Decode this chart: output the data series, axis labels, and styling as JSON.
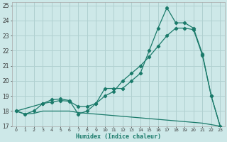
{
  "xlabel": "Humidex (Indice chaleur)",
  "bg_color": "#cde8e8",
  "grid_color": "#b0d0d0",
  "line_color": "#1a7a6a",
  "xlim": [
    -0.5,
    23.5
  ],
  "ylim": [
    17,
    25.2
  ],
  "x_ticks": [
    0,
    1,
    2,
    3,
    4,
    5,
    6,
    7,
    8,
    9,
    10,
    11,
    12,
    13,
    14,
    15,
    16,
    17,
    18,
    19,
    20,
    21,
    22,
    23
  ],
  "y_ticks": [
    17,
    18,
    19,
    20,
    21,
    22,
    23,
    24,
    25
  ],
  "line1_x": [
    0,
    1,
    2,
    3,
    4,
    5,
    6,
    7,
    8,
    9,
    10,
    11,
    12,
    13,
    14,
    15,
    16,
    17,
    18,
    19,
    20,
    21,
    22,
    23
  ],
  "line1_y": [
    18.0,
    17.8,
    17.85,
    18.0,
    18.0,
    18.0,
    18.0,
    17.9,
    17.85,
    17.8,
    17.75,
    17.7,
    17.65,
    17.6,
    17.55,
    17.5,
    17.45,
    17.4,
    17.35,
    17.3,
    17.25,
    17.2,
    17.1,
    17.0
  ],
  "line2_x": [
    0,
    1,
    2,
    3,
    4,
    5,
    6,
    7,
    8,
    9,
    10,
    11,
    12,
    13,
    14,
    15,
    16,
    17,
    18,
    19,
    20,
    21,
    22,
    23
  ],
  "line2_y": [
    18.0,
    17.8,
    18.0,
    18.5,
    18.6,
    18.7,
    18.65,
    18.3,
    18.3,
    18.5,
    19.0,
    19.3,
    20.0,
    20.5,
    21.0,
    21.6,
    22.3,
    23.0,
    23.5,
    23.5,
    23.4,
    21.7,
    19.0,
    17.0
  ],
  "line3_x": [
    0,
    3,
    4,
    5,
    6,
    7,
    8,
    9,
    10,
    11,
    12,
    13,
    14,
    15,
    16,
    17,
    18,
    19,
    20,
    21,
    22,
    23
  ],
  "line3_y": [
    18.0,
    18.5,
    18.75,
    18.8,
    18.7,
    17.8,
    18.0,
    18.5,
    19.5,
    19.5,
    19.5,
    20.0,
    20.5,
    22.0,
    23.5,
    24.85,
    23.85,
    23.85,
    23.5,
    21.8,
    19.0,
    17.0
  ]
}
